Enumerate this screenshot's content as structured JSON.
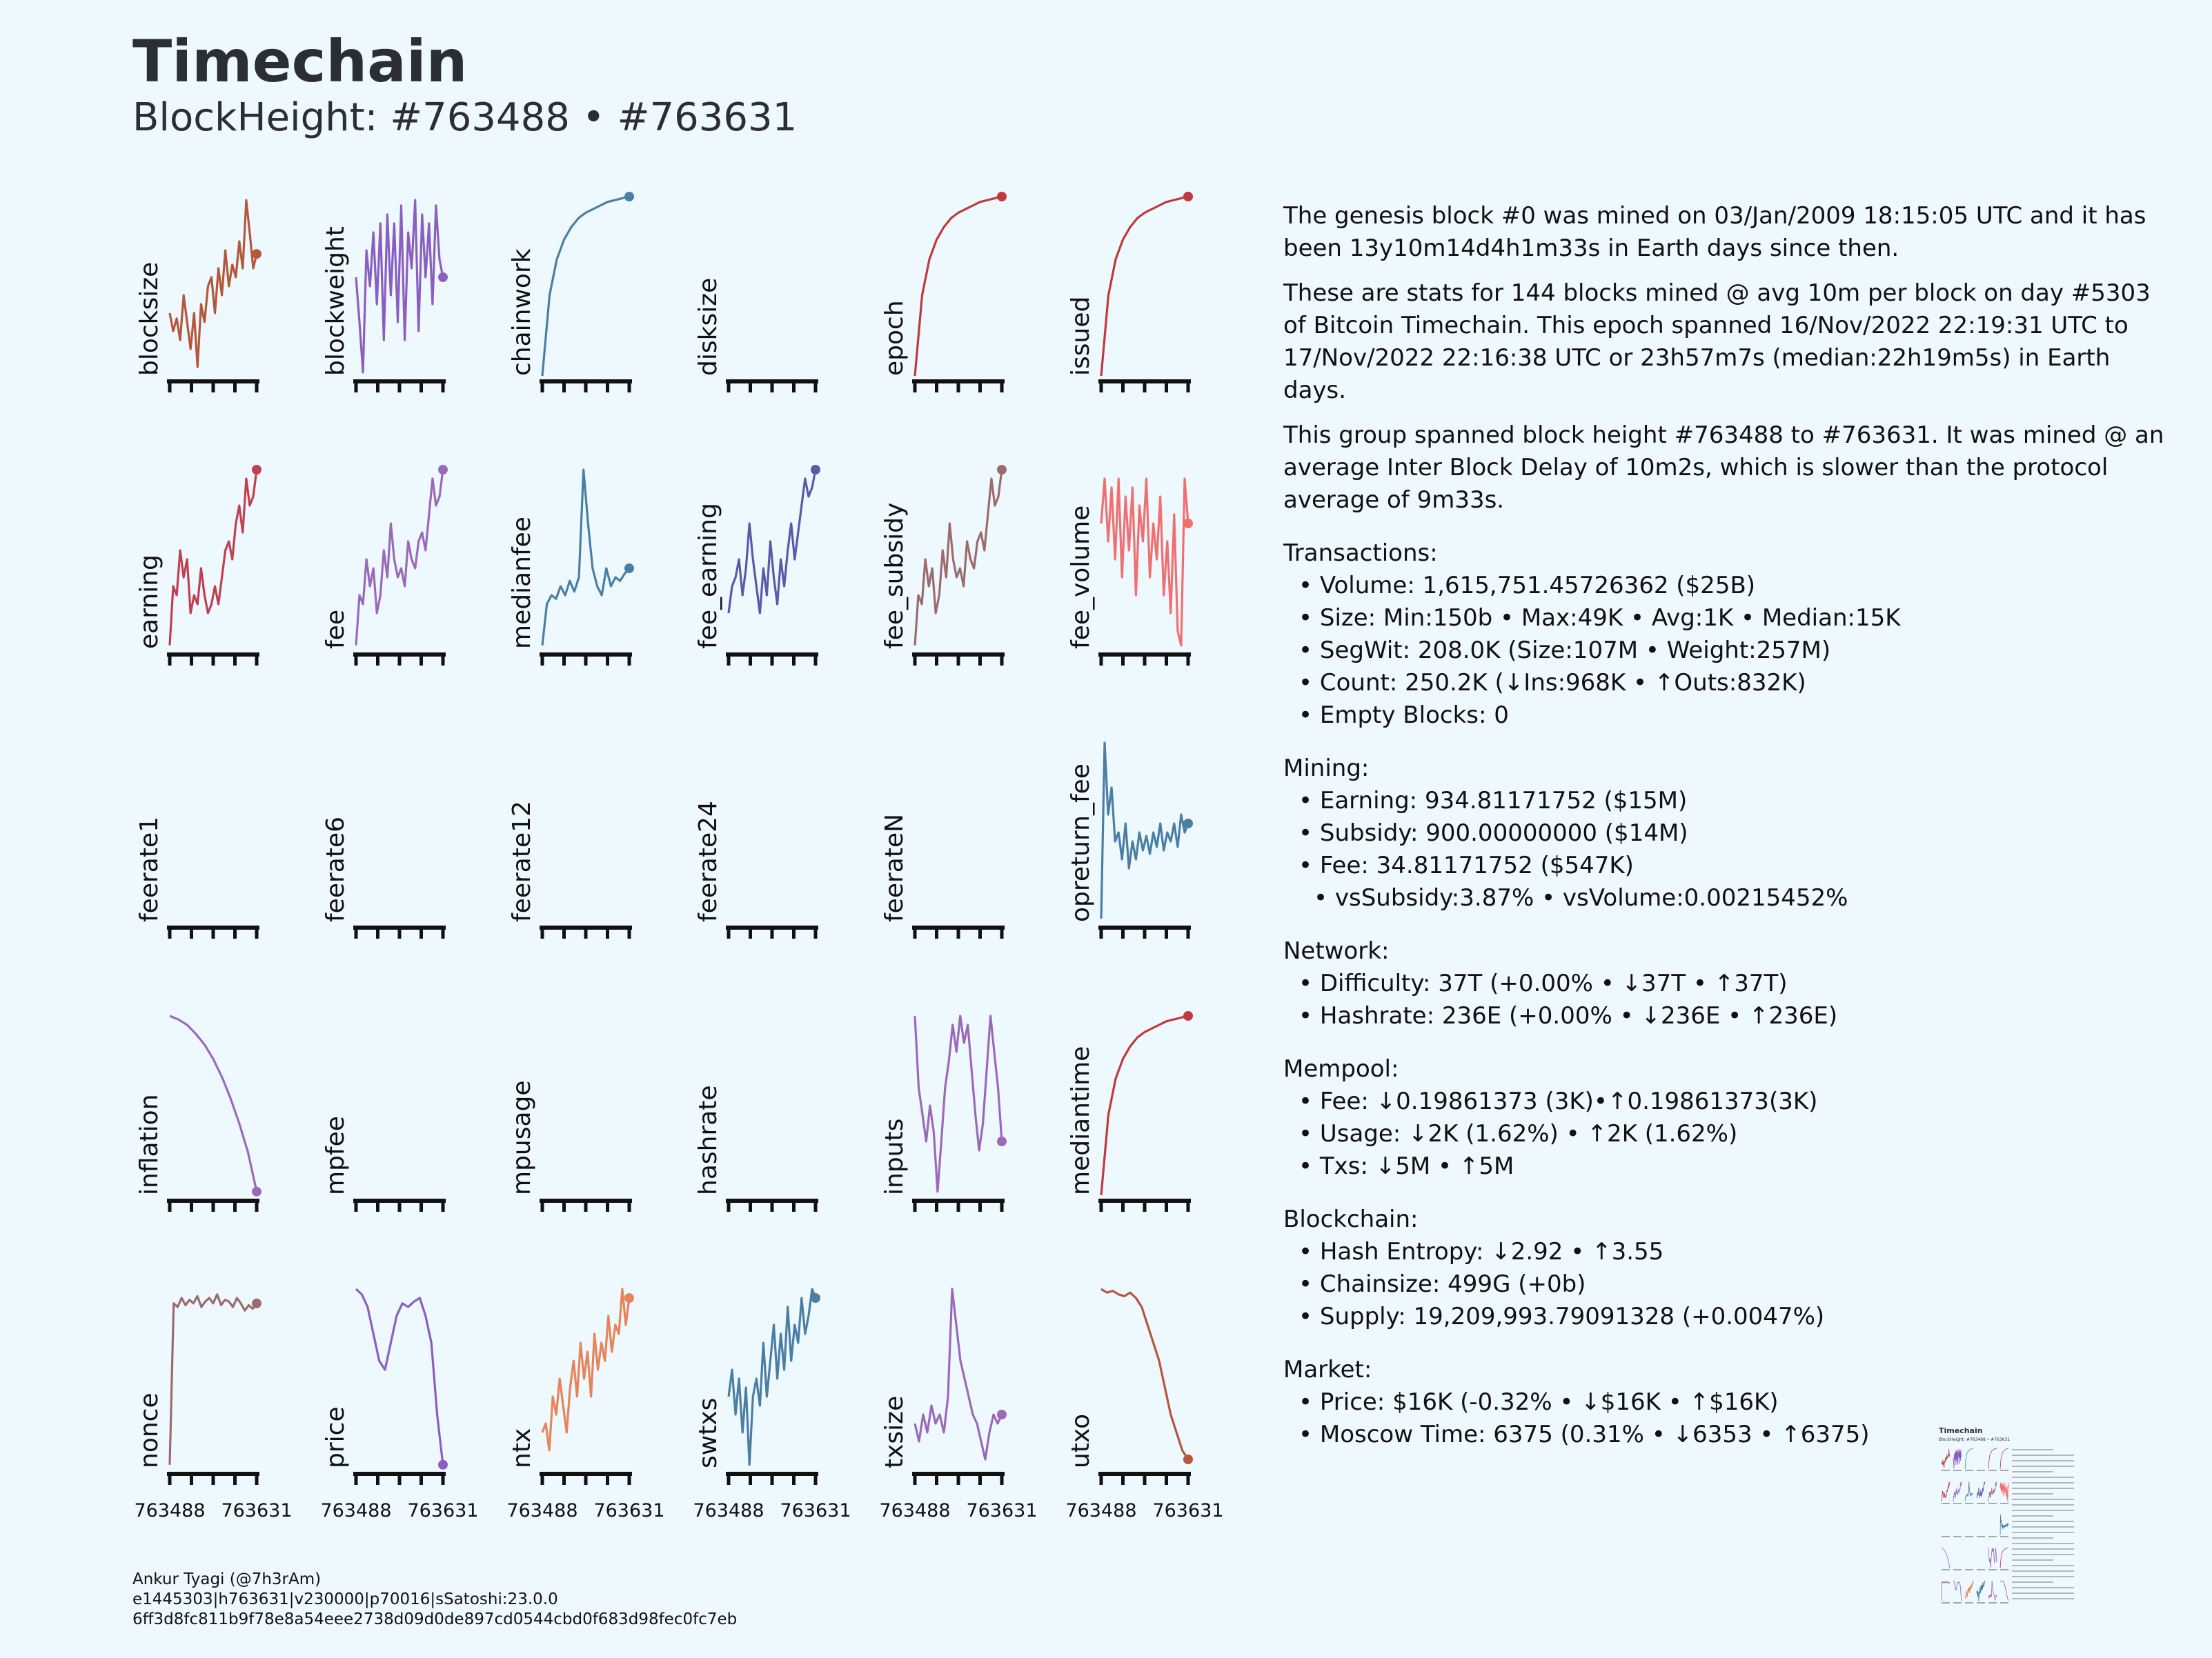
{
  "header": {
    "title": "Timechain",
    "subtitle": "BlockHeight: #763488 • #763631"
  },
  "chart_data": {
    "type": "line",
    "x_start": 763488,
    "x_end": 763631,
    "x_ticks": [
      "763488",
      "763631"
    ],
    "panels": [
      {
        "name": "blocksize",
        "color": "#b5573a",
        "values": [
          0.35,
          0.25,
          0.32,
          0.2,
          0.45,
          0.3,
          0.15,
          0.35,
          0.05,
          0.4,
          0.3,
          0.5,
          0.55,
          0.35,
          0.6,
          0.45,
          0.7,
          0.5,
          0.62,
          0.55,
          0.75,
          0.6,
          0.98,
          0.8,
          0.6,
          0.68
        ]
      },
      {
        "name": "blockweight",
        "color": "#8b5fc0",
        "values": [
          0.55,
          0.3,
          0.02,
          0.7,
          0.5,
          0.8,
          0.4,
          0.85,
          0.2,
          0.9,
          0.45,
          0.85,
          0.3,
          0.95,
          0.2,
          0.8,
          0.6,
          0.98,
          0.25,
          0.9,
          0.55,
          0.85,
          0.4,
          0.95,
          0.65,
          0.55
        ]
      },
      {
        "name": "chainwork",
        "color": "#4a7fa3",
        "values": [
          0.0,
          0.45,
          0.65,
          0.76,
          0.83,
          0.88,
          0.91,
          0.93,
          0.95,
          0.97,
          0.98,
          0.99,
          1.0
        ]
      },
      {
        "name": "disksize",
        "color": "#4a7fa3",
        "values": []
      },
      {
        "name": "epoch",
        "color": "#c0393b",
        "values": [
          0.0,
          0.45,
          0.65,
          0.76,
          0.83,
          0.88,
          0.91,
          0.93,
          0.95,
          0.97,
          0.98,
          0.99,
          1.0
        ]
      },
      {
        "name": "issued",
        "color": "#c0393b",
        "values": [
          0.0,
          0.45,
          0.65,
          0.76,
          0.83,
          0.88,
          0.91,
          0.93,
          0.95,
          0.97,
          0.98,
          0.99,
          1.0
        ]
      },
      {
        "name": "earning",
        "color": "#c04050",
        "values": [
          0.02,
          0.35,
          0.3,
          0.55,
          0.4,
          0.5,
          0.2,
          0.3,
          0.25,
          0.45,
          0.3,
          0.2,
          0.25,
          0.35,
          0.25,
          0.4,
          0.55,
          0.6,
          0.5,
          0.7,
          0.8,
          0.65,
          0.95,
          0.8,
          0.85,
          1.0
        ]
      },
      {
        "name": "fee",
        "color": "#9a6ab9",
        "values": [
          0.02,
          0.3,
          0.25,
          0.5,
          0.35,
          0.45,
          0.2,
          0.3,
          0.55,
          0.4,
          0.7,
          0.5,
          0.4,
          0.45,
          0.35,
          0.6,
          0.5,
          0.45,
          0.6,
          0.65,
          0.55,
          0.75,
          0.95,
          0.8,
          0.85,
          1.0
        ]
      },
      {
        "name": "medianfee",
        "color": "#4a7fa3",
        "values": [
          0.02,
          0.25,
          0.3,
          0.28,
          0.35,
          0.3,
          0.38,
          0.32,
          0.4,
          1.0,
          0.7,
          0.45,
          0.35,
          0.3,
          0.45,
          0.35,
          0.4,
          0.38,
          0.42,
          0.45
        ]
      },
      {
        "name": "fee_earning",
        "color": "#5a5aa8",
        "values": [
          0.2,
          0.35,
          0.4,
          0.5,
          0.3,
          0.45,
          0.7,
          0.5,
          0.35,
          0.2,
          0.45,
          0.3,
          0.6,
          0.4,
          0.25,
          0.5,
          0.35,
          0.55,
          0.7,
          0.5,
          0.65,
          0.8,
          0.95,
          0.85,
          0.9,
          1.0
        ]
      },
      {
        "name": "fee_subsidy",
        "color": "#9d6b6b",
        "values": [
          0.02,
          0.3,
          0.25,
          0.5,
          0.35,
          0.45,
          0.2,
          0.3,
          0.55,
          0.4,
          0.7,
          0.5,
          0.4,
          0.45,
          0.35,
          0.6,
          0.5,
          0.45,
          0.6,
          0.65,
          0.55,
          0.75,
          0.95,
          0.8,
          0.85,
          1.0
        ]
      },
      {
        "name": "fee_volume",
        "color": "#f07070",
        "values": [
          0.7,
          0.95,
          0.6,
          0.9,
          0.5,
          0.95,
          0.4,
          0.85,
          0.55,
          0.9,
          0.3,
          0.8,
          0.6,
          0.95,
          0.4,
          0.7,
          0.5,
          0.85,
          0.3,
          0.6,
          0.2,
          0.75,
          0.1,
          0.02,
          0.95,
          0.7
        ]
      },
      {
        "name": "feerate1",
        "color": "#4a7fa3",
        "values": []
      },
      {
        "name": "feerate6",
        "color": "#4a7fa3",
        "values": []
      },
      {
        "name": "feerate12",
        "color": "#4a7fa3",
        "values": []
      },
      {
        "name": "feerate24",
        "color": "#4a7fa3",
        "values": []
      },
      {
        "name": "feerateN",
        "color": "#4a7fa3",
        "values": []
      },
      {
        "name": "opreturn_fee",
        "color": "#4a7fa3",
        "values": [
          0.02,
          1.0,
          0.6,
          0.75,
          0.45,
          0.5,
          0.35,
          0.55,
          0.3,
          0.45,
          0.35,
          0.5,
          0.4,
          0.48,
          0.38,
          0.5,
          0.42,
          0.55,
          0.4,
          0.5,
          0.45,
          0.55,
          0.42,
          0.6,
          0.5,
          0.55
        ]
      },
      {
        "name": "inflation",
        "color": "#9a6ab9",
        "values": [
          1.0,
          0.98,
          0.95,
          0.9,
          0.84,
          0.76,
          0.66,
          0.54,
          0.4,
          0.24,
          0.02
        ]
      },
      {
        "name": "mpfee",
        "color": "#4a7fa3",
        "values": []
      },
      {
        "name": "mpusage",
        "color": "#4a7fa3",
        "values": []
      },
      {
        "name": "hashrate",
        "color": "#4a7fa3",
        "values": []
      },
      {
        "name": "inputs",
        "color": "#9a6ab9",
        "values": [
          1.0,
          0.6,
          0.45,
          0.3,
          0.5,
          0.35,
          0.02,
          0.3,
          0.6,
          0.75,
          0.95,
          0.8,
          1.0,
          0.85,
          0.95,
          0.7,
          0.45,
          0.25,
          0.4,
          0.7,
          1.0,
          0.8,
          0.6,
          0.3
        ]
      },
      {
        "name": "mediantime",
        "color": "#c0393b",
        "values": [
          0.0,
          0.45,
          0.65,
          0.76,
          0.83,
          0.88,
          0.91,
          0.93,
          0.95,
          0.97,
          0.98,
          0.99,
          1.0
        ]
      },
      {
        "name": "nonce",
        "color": "#9d6b6b",
        "values": [
          0.02,
          0.92,
          0.9,
          0.95,
          0.91,
          0.94,
          0.92,
          0.96,
          0.9,
          0.93,
          0.95,
          0.92,
          0.97,
          0.91,
          0.94,
          0.93,
          0.9,
          0.95,
          0.92,
          0.88,
          0.91,
          0.89,
          0.92
        ]
      },
      {
        "name": "price",
        "color": "#8b5fc0",
        "values": [
          1.0,
          0.97,
          0.9,
          0.75,
          0.6,
          0.55,
          0.7,
          0.85,
          0.92,
          0.9,
          0.93,
          0.95,
          0.85,
          0.7,
          0.3,
          0.02
        ]
      },
      {
        "name": "ntx",
        "color": "#e8845a",
        "values": [
          0.2,
          0.25,
          0.1,
          0.4,
          0.3,
          0.5,
          0.35,
          0.2,
          0.45,
          0.6,
          0.4,
          0.7,
          0.5,
          0.65,
          0.4,
          0.75,
          0.55,
          0.7,
          0.6,
          0.85,
          0.65,
          0.8,
          0.75,
          1.0,
          0.8,
          0.95
        ]
      },
      {
        "name": "swtxs",
        "color": "#4a7fa3",
        "values": [
          0.4,
          0.55,
          0.3,
          0.5,
          0.2,
          0.45,
          0.02,
          0.4,
          0.5,
          0.35,
          0.7,
          0.4,
          0.6,
          0.8,
          0.5,
          0.75,
          0.55,
          0.9,
          0.6,
          0.8,
          0.7,
          0.95,
          0.75,
          0.85,
          1.0,
          0.95
        ]
      },
      {
        "name": "txsize",
        "color": "#9a6ab9",
        "values": [
          0.25,
          0.15,
          0.3,
          0.2,
          0.35,
          0.25,
          0.3,
          0.2,
          0.4,
          1.0,
          0.8,
          0.6,
          0.5,
          0.4,
          0.3,
          0.25,
          0.15,
          0.05,
          0.2,
          0.3,
          0.25,
          0.3
        ]
      },
      {
        "name": "utxo",
        "color": "#b5573a",
        "values": [
          1.0,
          0.98,
          0.99,
          0.97,
          0.96,
          0.98,
          0.95,
          0.9,
          0.8,
          0.7,
          0.6,
          0.45,
          0.3,
          0.2,
          0.1,
          0.05
        ]
      }
    ]
  },
  "stats": {
    "intro": [
      "The genesis block #0 was mined on 03/Jan/2009 18:15:05 UTC and it has been 13y10m14d4h1m33s in Earth days since then.",
      "These are stats for 144 blocks mined @ avg 10m per block on day #5303 of Bitcoin Timechain. This epoch spanned 16/Nov/2022 22:19:31 UTC to 17/Nov/2022 22:16:38 UTC or 23h57m7s (median:22h19m5s) in Earth days.",
      "This group spanned block height #763488 to #763631. It was mined @ an average Inter Block Delay of 10m2s, which is slower than the protocol average of 9m33s."
    ],
    "transactions": {
      "title": "Transactions:",
      "items": [
        "• Volume: 1,615,751.45726362 ($25B)",
        "• Size: Min:150b • Max:49K • Avg:1K • Median:15K",
        "• SegWit: 208.0K (Size:107M • Weight:257M)",
        "• Count: 250.2K (↓Ins:968K • ↑Outs:832K)",
        "• Empty Blocks: 0"
      ]
    },
    "mining": {
      "title": "Mining:",
      "items": [
        "• Earning: 934.81171752 ($15M)",
        "• Subsidy: 900.00000000 ($14M)",
        "• Fee: 34.81171752 ($547K)"
      ],
      "sub": "• vsSubsidy:3.87% • vsVolume:0.00215452%"
    },
    "network": {
      "title": "Network:",
      "items": [
        "• Difficulty: 37T (+0.00% • ↓37T • ↑37T)",
        "• Hashrate: 236E (+0.00% • ↓236E • ↑236E)"
      ]
    },
    "mempool": {
      "title": "Mempool:",
      "items": [
        "• Fee: ↓0.19861373 (3K)•↑0.19861373(3K)",
        "• Usage: ↓2K (1.62%) • ↑2K (1.62%)",
        "• Txs: ↓5M • ↑5M"
      ]
    },
    "blockchain": {
      "title": "Blockchain:",
      "items": [
        "• Hash Entropy: ↓2.92 • ↑3.55",
        "• Chainsize: 499G (+0b)",
        "• Supply: 19,209,993.79091328 (+0.0047%)"
      ]
    },
    "market": {
      "title": "Market:",
      "items": [
        "• Price: $16K (-0.32% • ↓$16K • ↑$16K)",
        "• Moscow Time: 6375 (0.31% • ↓6353 • ↑6375)"
      ]
    }
  },
  "footer": {
    "author": "Ankur Tyagi (@7h3rAm)",
    "build": "e1445303|h763631|v230000|p70016|sSatoshi:23.0.0",
    "hash": "6ff3d8fc811b9f78e8a54eee2738d09d0de897cd0544cbd0f683d98fec0fc7eb"
  },
  "thumbnail": {
    "title": "Timechain",
    "subtitle": "BlockHeight: #763488 • #763631"
  }
}
